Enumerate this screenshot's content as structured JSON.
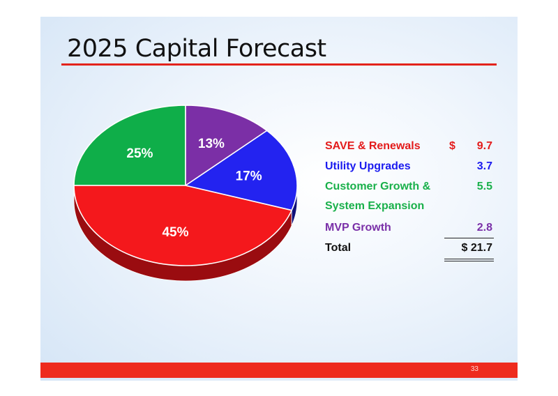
{
  "title": "2025 Capital Forecast",
  "page_number": "33",
  "colors": {
    "accent": "#e3231b",
    "save": "#e31b1b",
    "utility": "#1b1bef",
    "customer": "#19b04a",
    "mvp": "#7a30a8"
  },
  "chart_data": {
    "type": "pie",
    "title": "",
    "start_angle_deg": 90,
    "direction": "counterclockwise",
    "slices": [
      {
        "label": "25%",
        "value": 25,
        "color": "#0fae49",
        "side": "#0a7a33"
      },
      {
        "label": "45%",
        "value": 45,
        "color": "#f4181c",
        "side": "#9a0c10"
      },
      {
        "label": "17%",
        "value": 17,
        "color": "#2323f0",
        "side": "#10107a"
      },
      {
        "label": "13%",
        "value": 13,
        "color": "#7b2fa6",
        "side": "#4c1a6b"
      }
    ]
  },
  "legend": {
    "currency": "$",
    "rows": [
      {
        "label": "SAVE & Renewals",
        "dollar": "$",
        "value": "9.7",
        "color": "#e31b1b"
      },
      {
        "label": "Utility Upgrades",
        "dollar": "",
        "value": "3.7",
        "color": "#1b1bef"
      },
      {
        "label": "Customer Growth & System Expansion",
        "dollar": "",
        "value": "5.5",
        "color": "#19b04a"
      },
      {
        "label": "MVP Growth",
        "dollar": "",
        "value": "2.8",
        "color": "#7a30a8"
      }
    ],
    "total_label": "Total",
    "total_value": "$ 21.7"
  }
}
